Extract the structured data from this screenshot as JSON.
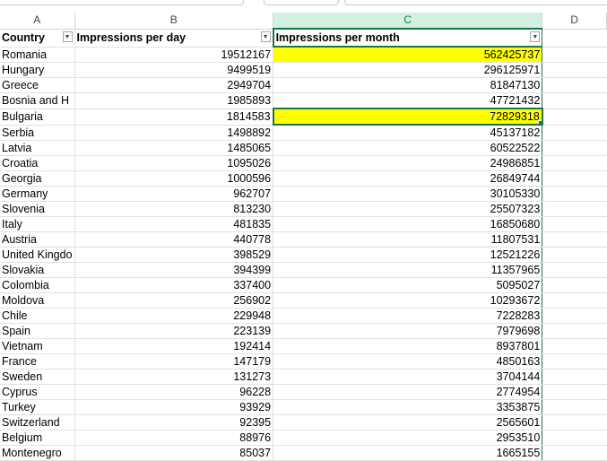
{
  "columns": [
    "A",
    "B",
    "C",
    "D"
  ],
  "headers": {
    "country": "Country",
    "per_day": "Impressions per day",
    "per_month": "Impressions per month"
  },
  "filter_icon": "▼",
  "rows": [
    {
      "country": "Romania",
      "per_day": "19512167",
      "per_month": "562425737"
    },
    {
      "country": "Hungary",
      "per_day": "9499519",
      "per_month": "296125971"
    },
    {
      "country": "Greece",
      "per_day": "2949704",
      "per_month": "81847130"
    },
    {
      "country": "Bosnia and H",
      "per_day": "1985893",
      "per_month": "47721432"
    },
    {
      "country": "Bulgaria",
      "per_day": "1814583",
      "per_month": "72829318"
    },
    {
      "country": "Serbia",
      "per_day": "1498892",
      "per_month": "45137182"
    },
    {
      "country": "Latvia",
      "per_day": "1485065",
      "per_month": "60522522"
    },
    {
      "country": "Croatia",
      "per_day": "1095026",
      "per_month": "24986851"
    },
    {
      "country": "Georgia",
      "per_day": "1000596",
      "per_month": "26849744"
    },
    {
      "country": "Germany",
      "per_day": "962707",
      "per_month": "30105330"
    },
    {
      "country": "Slovenia",
      "per_day": "813230",
      "per_month": "25507323"
    },
    {
      "country": "Italy",
      "per_day": "481835",
      "per_month": "16850680"
    },
    {
      "country": "Austria",
      "per_day": "440778",
      "per_month": "11807531"
    },
    {
      "country": "United Kingdo",
      "per_day": "398529",
      "per_month": "12521226"
    },
    {
      "country": "Slovakia",
      "per_day": "394399",
      "per_month": "11357965"
    },
    {
      "country": "Colombia",
      "per_day": "337400",
      "per_month": "5095027"
    },
    {
      "country": "Moldova",
      "per_day": "256902",
      "per_month": "10293672"
    },
    {
      "country": "Chile",
      "per_day": "229948",
      "per_month": "7228283"
    },
    {
      "country": "Spain",
      "per_day": "223139",
      "per_month": "7979698"
    },
    {
      "country": "Vietnam",
      "per_day": "192414",
      "per_month": "8937801"
    },
    {
      "country": "France",
      "per_day": "147179",
      "per_month": "4850163"
    },
    {
      "country": "Sweden",
      "per_day": "131273",
      "per_month": "3704144"
    },
    {
      "country": "Cyprus",
      "per_day": "96228",
      "per_month": "2774954"
    },
    {
      "country": "Turkey",
      "per_day": "93929",
      "per_month": "3353875"
    },
    {
      "country": "Switzerland",
      "per_day": "92395",
      "per_month": "2565601"
    },
    {
      "country": "Belgium",
      "per_day": "88976",
      "per_month": "2953510"
    },
    {
      "country": "Montenegro",
      "per_day": "85037",
      "per_month": "1665155"
    }
  ],
  "highlighted_rows": [
    0,
    4
  ],
  "active_row": 4,
  "colors": {
    "highlight": "#ffff00",
    "selection": "#217346"
  }
}
